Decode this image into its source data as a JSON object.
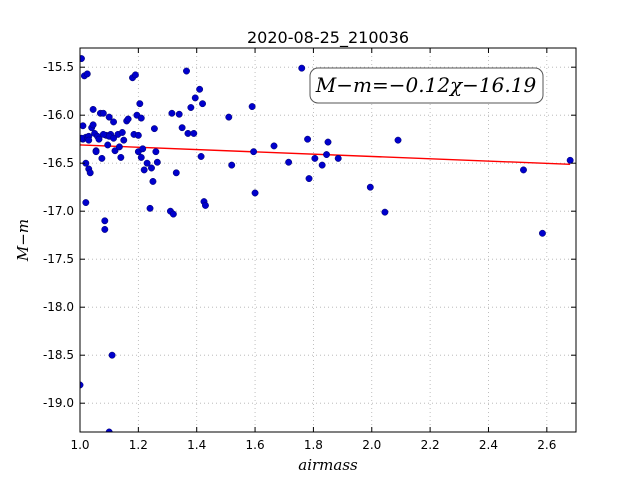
{
  "chart_data": {
    "type": "scatter",
    "title": "2020-08-25_210036",
    "xlabel": "airmass",
    "ylabel": "M−m",
    "xlim": [
      1.0,
      2.7
    ],
    "ylim": [
      -15.3,
      -19.3
    ],
    "y_inverted": true,
    "grid": true,
    "xticks": [
      "1.0",
      "1.2",
      "1.4",
      "1.6",
      "1.8",
      "2.0",
      "2.2",
      "2.4",
      "2.6"
    ],
    "yticks": [
      "-15.5",
      "-16.0",
      "-16.5",
      "-17.0",
      "-17.5",
      "-18.0",
      "-18.5",
      "-19.0"
    ],
    "xtick_values": [
      1.0,
      1.2,
      1.4,
      1.6,
      1.8,
      2.0,
      2.2,
      2.4,
      2.6
    ],
    "ytick_values": [
      -15.5,
      -16.0,
      -16.5,
      -17.0,
      -17.5,
      -18.0,
      -18.5,
      -19.0
    ],
    "annotation": "M−m=−0.12χ−16.19",
    "colors": {
      "points": "#0000cc",
      "fit": "#ff0000",
      "grid": "#b0b0b0"
    },
    "fit": {
      "slope": -0.12,
      "intercept": -16.19
    },
    "x": [
      1.005,
      1.01,
      1.01,
      1.015,
      1.02,
      1.02,
      1.025,
      1.03,
      1.03,
      1.035,
      1.04,
      1.045,
      1.045,
      1.05,
      1.055,
      1.06,
      1.065,
      1.07,
      1.075,
      1.08,
      1.085,
      1.085,
      1.09,
      1.095,
      1.1,
      1.1,
      1.105,
      1.11,
      1.115,
      1.12,
      1.13,
      1.135,
      1.14,
      1.145,
      1.15,
      1.16,
      1.165,
      1.18,
      1.185,
      1.19,
      1.195,
      1.2,
      1.2,
      1.205,
      1.21,
      1.21,
      1.215,
      1.22,
      1.23,
      1.24,
      1.245,
      1.25,
      1.255,
      1.26,
      1.265,
      1.31,
      1.315,
      1.32,
      1.33,
      1.34,
      1.35,
      1.365,
      1.37,
      1.38,
      1.39,
      1.395,
      1.41,
      1.415,
      1.42,
      1.425,
      1.43,
      1.51,
      1.52,
      1.59,
      1.595,
      1.6,
      1.665,
      1.715,
      1.76,
      1.78,
      1.785,
      1.805,
      1.83,
      1.845,
      1.85,
      1.885,
      1.995,
      2.045,
      2.09,
      2.52,
      2.585,
      2.68,
      1.0,
      1.1,
      1.115,
      1.005,
      1.03,
      1.02,
      1.055,
      1.08
    ],
    "y": [
      -15.41,
      -16.11,
      -16.25,
      -15.59,
      -16.5,
      -16.23,
      -15.57,
      -16.22,
      -16.56,
      -16.6,
      -16.13,
      -15.94,
      -16.1,
      -16.19,
      -16.37,
      -16.22,
      -16.25,
      -15.98,
      -16.45,
      -15.98,
      -17.1,
      -17.19,
      -16.21,
      -16.31,
      -16.02,
      -19.3,
      -16.2,
      -18.5,
      -16.07,
      -16.37,
      -16.2,
      -16.33,
      -16.44,
      -16.18,
      -16.26,
      -16.06,
      -16.04,
      -15.61,
      -16.2,
      -15.58,
      -16.0,
      -16.38,
      -16.21,
      -15.88,
      -16.03,
      -16.44,
      -16.35,
      -16.57,
      -16.5,
      -16.97,
      -16.55,
      -16.69,
      -16.14,
      -16.38,
      -16.49,
      -17.0,
      -15.98,
      -17.03,
      -16.6,
      -15.99,
      -16.13,
      -15.54,
      -16.19,
      -15.92,
      -16.19,
      -15.82,
      -15.73,
      -16.43,
      -15.88,
      -16.9,
      -16.94,
      -16.02,
      -16.52,
      -15.91,
      -16.38,
      -16.81,
      -16.32,
      -16.49,
      -15.51,
      -16.25,
      -16.66,
      -16.45,
      -16.52,
      -16.41,
      -16.28,
      -16.45,
      -16.75,
      -17.01,
      -16.26,
      -16.57,
      -17.23,
      -16.47,
      -18.81,
      -16.22,
      -16.24,
      -16.24,
      -16.26,
      -16.91,
      -16.38,
      -16.2
    ]
  }
}
